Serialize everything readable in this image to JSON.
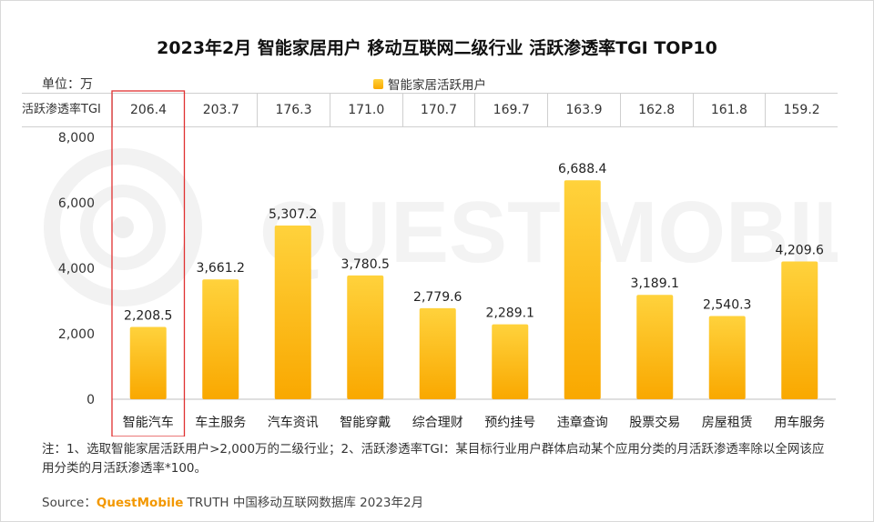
{
  "title": "2023年2月 智能家居用户 移动互联网二级行业 活跃渗透率TGI TOP10",
  "unit_label": "单位：万",
  "legend_label": "智能家居活跃用户",
  "tgi_row_label": "活跃渗透率TGI",
  "watermark_text": "QUEST MOBILE",
  "note": "注：1、选取智能家居活跃用户>2,000万的二级行业；2、活跃渗透率TGI：某目标行业用户群体启动某个应用分类的月活跃渗透率除以全网该应用分类的月活跃渗透率*100。",
  "source": {
    "prefix": "Source：",
    "brand": "QuestMobile",
    "rest": " TRUTH 中国移动互联网数据库 2023年2月"
  },
  "colors": {
    "bar_top": "#ffd23c",
    "bar_bottom": "#f9a800",
    "highlight_box": "#e03030"
  },
  "chart_data": {
    "type": "bar",
    "categories": [
      "智能汽车",
      "车主服务",
      "汽车资讯",
      "智能穿戴",
      "综合理财",
      "预约挂号",
      "违章查询",
      "股票交易",
      "房屋租赁",
      "用车服务"
    ],
    "series": [
      {
        "name": "智能家居活跃用户",
        "values": [
          2208.5,
          3661.2,
          5307.2,
          3780.5,
          2779.6,
          2289.1,
          6688.4,
          3189.1,
          2540.3,
          4209.6
        ]
      }
    ],
    "value_labels": [
      "2,208.5",
      "3,661.2",
      "5,307.2",
      "3,780.5",
      "2,779.6",
      "2,289.1",
      "6,688.4",
      "3,189.1",
      "2,540.3",
      "4,209.6"
    ],
    "tgi": [
      "206.4",
      "203.7",
      "176.3",
      "171.0",
      "170.7",
      "169.7",
      "163.9",
      "162.8",
      "161.8",
      "159.2"
    ],
    "yticks": [
      "0",
      "2,000",
      "4,000",
      "6,000",
      "8,000"
    ],
    "ytick_values": [
      0,
      2000,
      4000,
      6000,
      8000
    ],
    "ylim": [
      0,
      8000
    ],
    "grid": false,
    "legend_position": "top-center",
    "highlight_category": "智能汽车"
  }
}
